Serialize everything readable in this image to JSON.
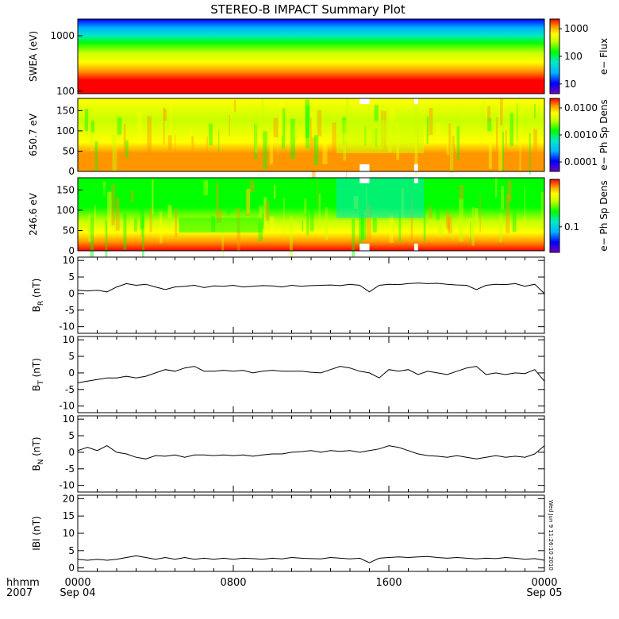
{
  "title": "STEREO-B IMPACT Summary Plot",
  "stamp": "Wed Jun 9 11:26:10 2010",
  "x_axis": {
    "ticks": [
      "0000",
      "0800",
      "1600",
      "0000"
    ],
    "date_labels": [
      "Sep 04",
      "Sep 05"
    ],
    "row_labels": [
      "hhmm",
      "2007"
    ]
  },
  "spectrograms": [
    {
      "ylabel": "SWEA (eV)",
      "scale": "log",
      "ylim": [
        90,
        2000
      ],
      "yticks": [
        "1000",
        "100"
      ],
      "colorbar": {
        "label": "e− Flux",
        "scale": "log",
        "ticks": [
          "1000",
          "100",
          "10"
        ]
      },
      "description": "electron energy flux spectrogram; flux highest (red) near 100 eV, decreasing to blue above ~1000 eV"
    },
    {
      "ylabel": "650.7 eV",
      "scale": "linear",
      "ylim": [
        0,
        180
      ],
      "yticks": [
        "150",
        "100",
        "50",
        "0"
      ],
      "colorbar": {
        "label": "e− Ph Sp Dens",
        "scale": "log",
        "ticks": [
          "0.0100",
          "0.0010",
          "0.0001"
        ]
      },
      "gaps_hours": [
        [
          14.5,
          15.0
        ],
        [
          17.3,
          17.5
        ]
      ]
    },
    {
      "ylabel": "246.6 eV",
      "scale": "linear",
      "ylim": [
        0,
        180
      ],
      "yticks": [
        "150",
        "100",
        "50",
        "0"
      ],
      "colorbar": {
        "label": "e− Ph Sp Dens",
        "scale": "log",
        "ticks": [
          "0.1"
        ]
      },
      "gaps_hours": [
        [
          14.5,
          15.0
        ],
        [
          17.3,
          17.5
        ]
      ]
    }
  ],
  "colors": {
    "scale": [
      "#7000c8",
      "#0000ff",
      "#00b4ff",
      "#00e8c8",
      "#00ff00",
      "#c8ff00",
      "#ffff00",
      "#ff9600",
      "#ff0000"
    ]
  },
  "chart_data": {
    "type": "line",
    "x_unit": "hours since 2007-09-04 0000 UT",
    "xlim": [
      0,
      24
    ],
    "series": [
      {
        "name": "BR (nT)",
        "ylabel_main": "B",
        "ylabel_sub": "R",
        "ylabel_unit": "(nT)",
        "ylim": [
          -12,
          11
        ],
        "yticks": [
          10,
          5,
          0,
          -5,
          -10
        ],
        "x": [
          0,
          0.5,
          1,
          1.5,
          2,
          2.5,
          3,
          3.5,
          4,
          4.5,
          5,
          5.5,
          6,
          6.5,
          7,
          7.5,
          8,
          8.5,
          9,
          9.5,
          10,
          10.5,
          11,
          11.5,
          12,
          12.5,
          13,
          13.5,
          14,
          14.5,
          15,
          15.5,
          16,
          16.5,
          17,
          17.5,
          18,
          18.5,
          19,
          19.5,
          20,
          20.5,
          21,
          21.5,
          22,
          22.5,
          23,
          23.5,
          24
        ],
        "values": [
          1.0,
          0.8,
          1.0,
          0.5,
          2.0,
          3.0,
          2.5,
          2.8,
          2.0,
          1.2,
          2.0,
          2.2,
          2.5,
          1.8,
          2.3,
          2.2,
          2.5,
          2.0,
          2.2,
          2.4,
          2.3,
          2.0,
          2.5,
          2.2,
          2.4,
          2.5,
          2.6,
          2.4,
          2.8,
          2.5,
          0.5,
          2.5,
          2.8,
          2.7,
          3.0,
          3.2,
          3.0,
          3.1,
          2.8,
          2.6,
          2.5,
          1.2,
          2.5,
          2.8,
          2.7,
          3.0,
          2.2,
          2.8,
          0.0
        ]
      },
      {
        "name": "BT (nT)",
        "ylabel_main": "B",
        "ylabel_sub": "T",
        "ylabel_unit": "(nT)",
        "ylim": [
          -12,
          11
        ],
        "yticks": [
          10,
          5,
          0,
          -5,
          -10
        ],
        "x": [
          0,
          0.5,
          1,
          1.5,
          2,
          2.5,
          3,
          3.5,
          4,
          4.5,
          5,
          5.5,
          6,
          6.5,
          7,
          7.5,
          8,
          8.5,
          9,
          9.5,
          10,
          10.5,
          11,
          11.5,
          12,
          12.5,
          13,
          13.5,
          14,
          14.5,
          15,
          15.5,
          16,
          16.5,
          17,
          17.5,
          18,
          18.5,
          19,
          19.5,
          20,
          20.5,
          21,
          21.5,
          22,
          22.5,
          23,
          23.5,
          24
        ],
        "values": [
          -3.0,
          -2.5,
          -2.0,
          -1.5,
          -1.5,
          -1.0,
          -1.5,
          -1.0,
          0.0,
          1.0,
          0.5,
          1.5,
          2.0,
          0.5,
          0.5,
          0.8,
          0.5,
          0.8,
          0.0,
          0.5,
          0.8,
          0.5,
          0.5,
          0.5,
          0.2,
          0.0,
          1.0,
          2.0,
          1.5,
          0.5,
          0.0,
          -1.5,
          1.0,
          0.5,
          1.0,
          -0.5,
          0.5,
          0.0,
          -0.5,
          0.5,
          1.5,
          2.0,
          -0.5,
          0.0,
          -0.5,
          0.0,
          -0.2,
          1.0,
          -2.5
        ]
      },
      {
        "name": "BN (nT)",
        "ylabel_main": "B",
        "ylabel_sub": "N",
        "ylabel_unit": "(nT)",
        "ylim": [
          -12,
          11
        ],
        "yticks": [
          10,
          5,
          0,
          -5,
          -10
        ],
        "x": [
          0,
          0.5,
          1,
          1.5,
          2,
          2.5,
          3,
          3.5,
          4,
          4.5,
          5,
          5.5,
          6,
          6.5,
          7,
          7.5,
          8,
          8.5,
          9,
          9.5,
          10,
          10.5,
          11,
          11.5,
          12,
          12.5,
          13,
          13.5,
          14,
          14.5,
          15,
          15.5,
          16,
          16.5,
          17,
          17.5,
          18,
          18.5,
          19,
          19.5,
          20,
          20.5,
          21,
          21.5,
          22,
          22.5,
          23,
          23.5,
          24
        ],
        "values": [
          0.5,
          1.5,
          0.5,
          2.0,
          0.0,
          -0.5,
          -1.5,
          -2.0,
          -1.0,
          -1.2,
          -0.8,
          -1.5,
          -0.8,
          -0.8,
          -1.0,
          -0.8,
          -1.0,
          -0.8,
          -1.2,
          -0.8,
          -0.5,
          -0.5,
          0.0,
          0.2,
          0.5,
          0.0,
          0.5,
          0.3,
          0.5,
          0.0,
          0.5,
          1.0,
          2.0,
          1.5,
          0.5,
          -0.5,
          -1.0,
          -1.2,
          -1.5,
          -1.0,
          -1.5,
          -2.0,
          -1.5,
          -1.0,
          -1.5,
          -1.2,
          -1.5,
          -0.5,
          2.0
        ]
      },
      {
        "name": "|B| (nT)",
        "ylabel_main": "IBI",
        "ylabel_sub": "",
        "ylabel_unit": "(nT)",
        "ylim": [
          -1,
          21
        ],
        "yticks": [
          20,
          15,
          10,
          5,
          0
        ],
        "x": [
          0,
          0.5,
          1,
          1.5,
          2,
          2.5,
          3,
          3.5,
          4,
          4.5,
          5,
          5.5,
          6,
          6.5,
          7,
          7.5,
          8,
          8.5,
          9,
          9.5,
          10,
          10.5,
          11,
          11.5,
          12,
          12.5,
          13,
          13.5,
          14,
          14.5,
          15,
          15.5,
          16,
          16.5,
          17,
          17.5,
          18,
          18.5,
          19,
          19.5,
          20,
          20.5,
          21,
          21.5,
          22,
          22.5,
          23,
          23.5,
          24
        ],
        "values": [
          2.5,
          2.2,
          2.5,
          2.2,
          2.5,
          3.0,
          3.5,
          3.0,
          2.5,
          3.0,
          2.5,
          3.0,
          2.5,
          2.8,
          2.5,
          2.8,
          2.5,
          2.8,
          2.7,
          2.5,
          2.8,
          2.6,
          3.0,
          2.8,
          2.7,
          2.6,
          3.0,
          2.8,
          2.6,
          2.8,
          1.5,
          2.8,
          3.0,
          3.2,
          3.0,
          3.2,
          3.3,
          3.0,
          2.8,
          3.0,
          2.8,
          2.6,
          2.8,
          2.7,
          3.0,
          2.8,
          2.5,
          2.7,
          2.2
        ]
      }
    ]
  }
}
